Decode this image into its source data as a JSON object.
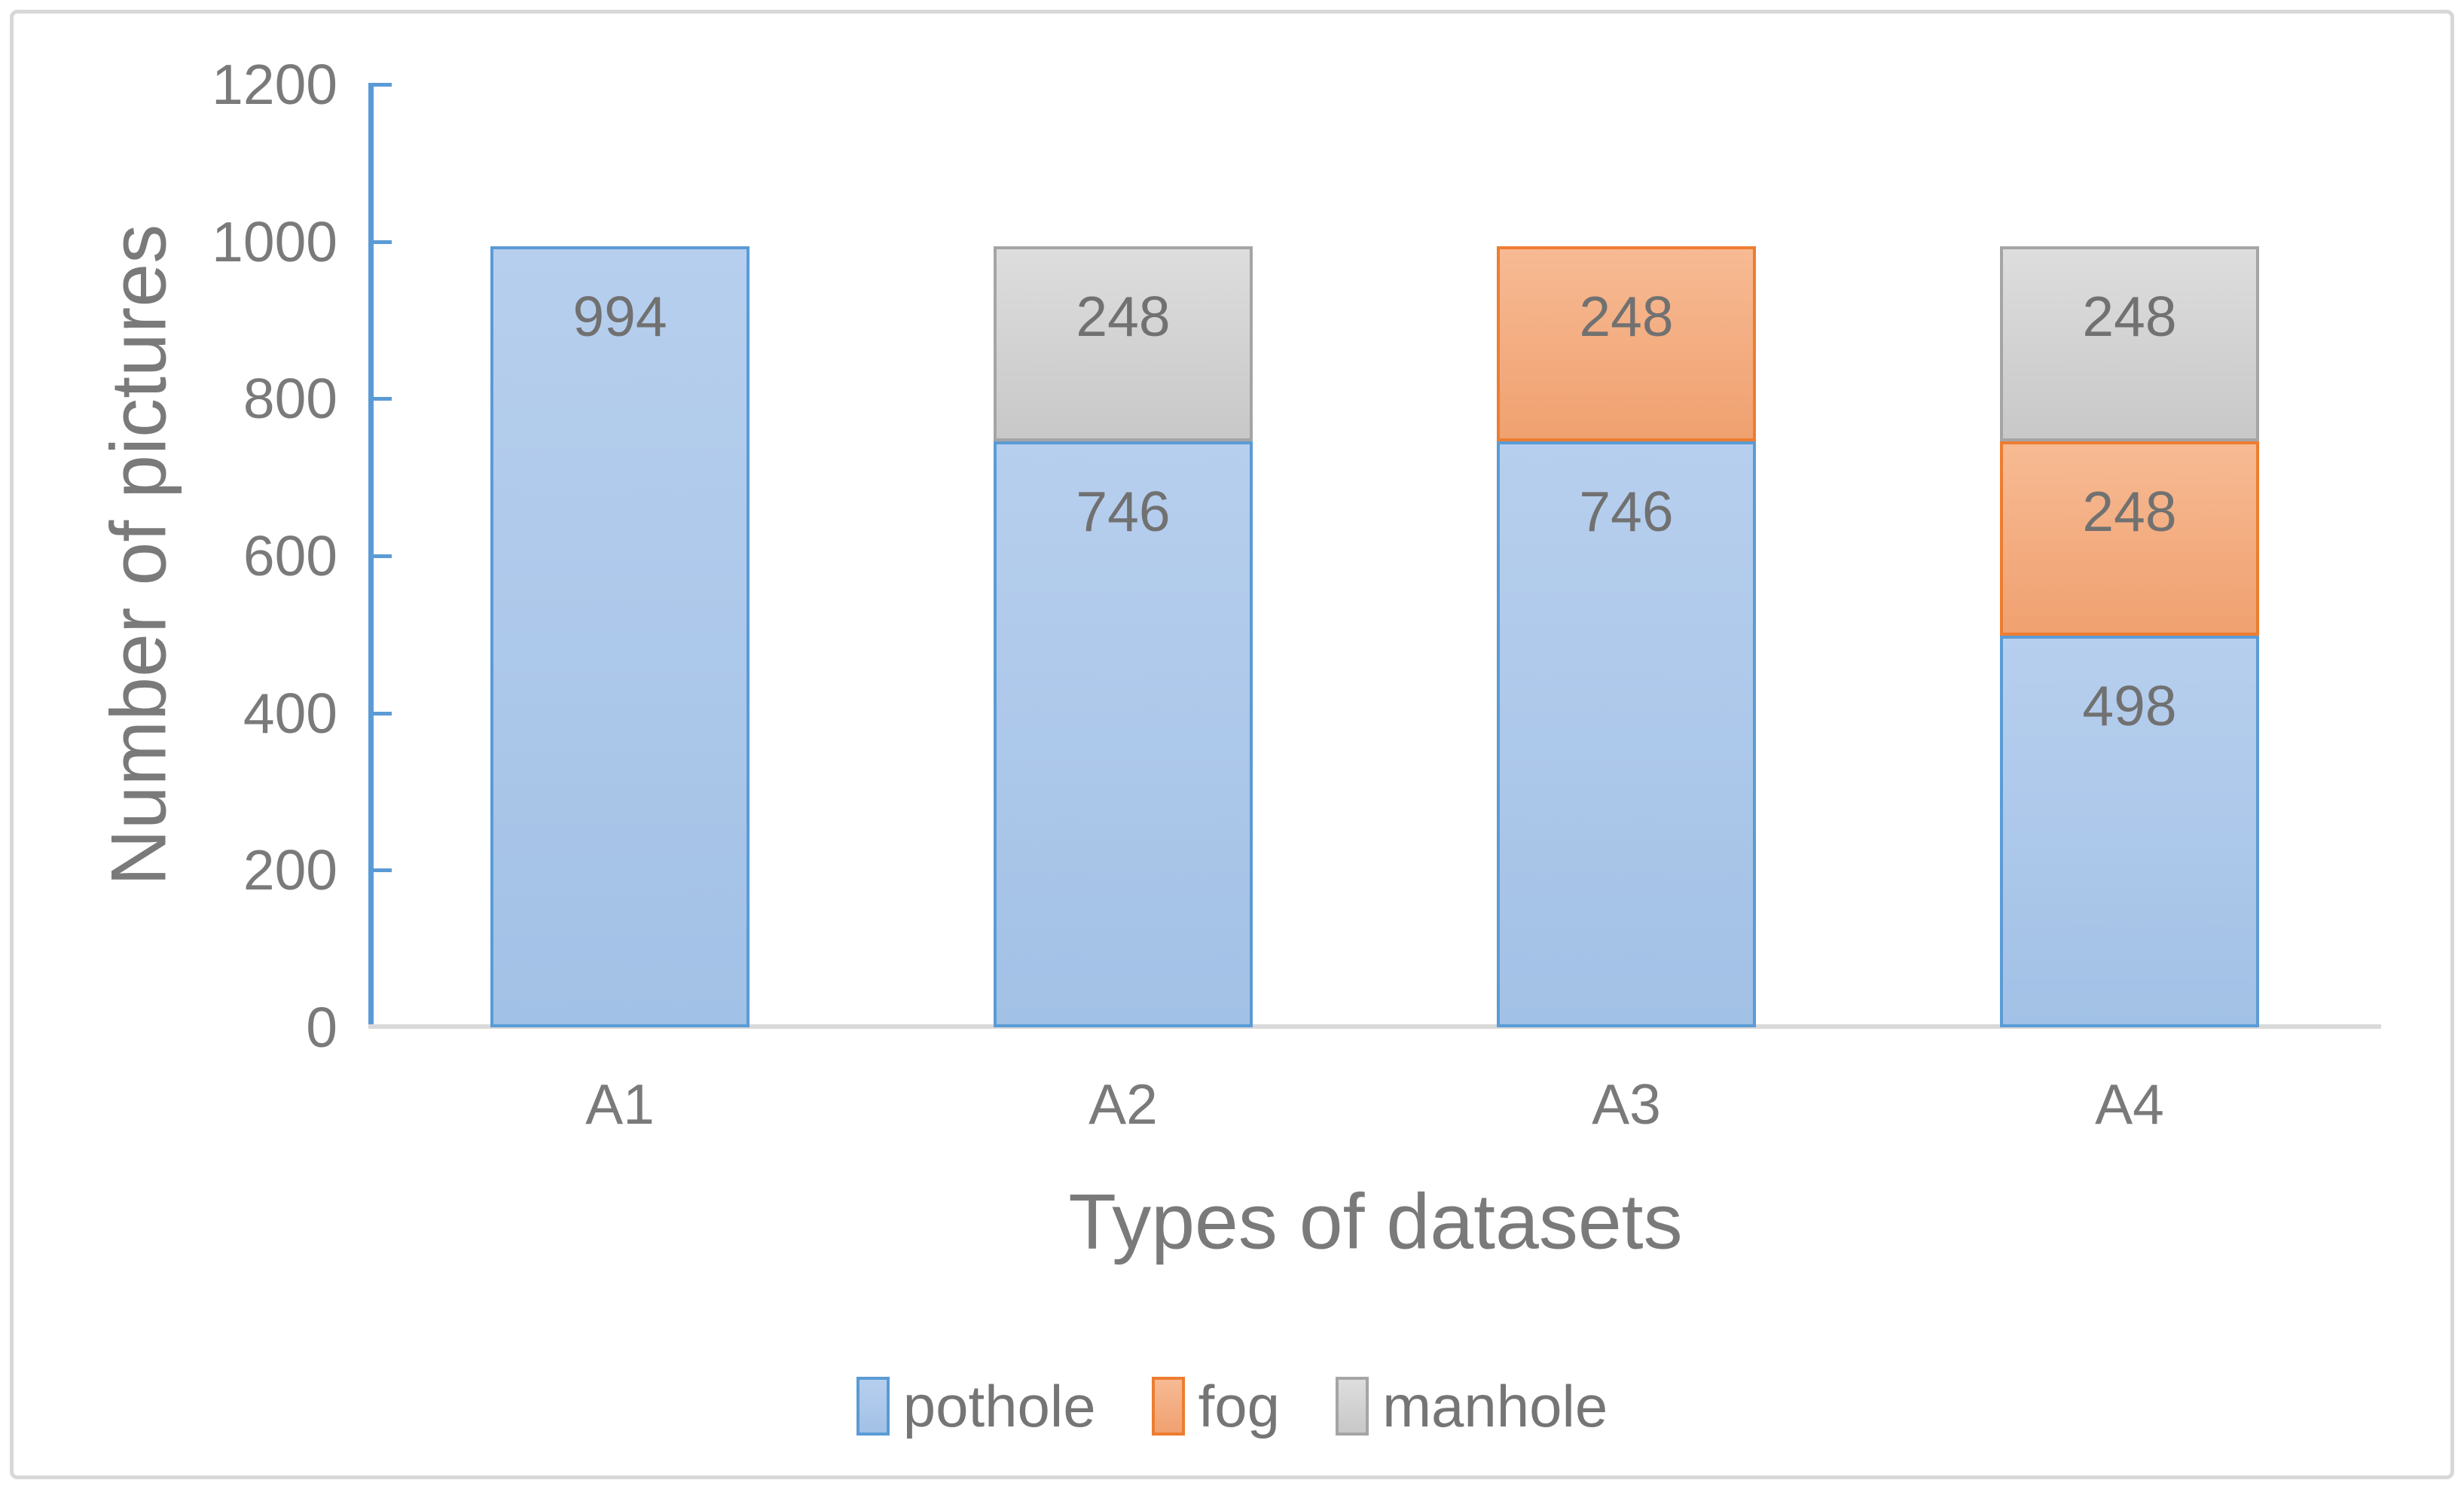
{
  "chart_data": {
    "type": "bar",
    "stacked": true,
    "title": "",
    "xlabel": "Types of datasets",
    "ylabel": "Number of pictures",
    "categories": [
      "A1",
      "A2",
      "A3",
      "A4"
    ],
    "series": [
      {
        "name": "pothole",
        "values": [
          994,
          746,
          746,
          498
        ],
        "border_color": "#5B9BD5",
        "fill_light": "#B7CFEE",
        "fill_dark": "#A2C1E6"
      },
      {
        "name": "fog",
        "values": [
          0,
          0,
          248,
          248
        ],
        "border_color": "#ED7D31",
        "fill_light": "#F7BA93",
        "fill_dark": "#F0A170"
      },
      {
        "name": "manhole",
        "values": [
          0,
          248,
          0,
          248
        ],
        "border_color": "#A5A5A5",
        "fill_light": "#DEDDDD",
        "fill_dark": "#C9C8C8"
      }
    ],
    "totals": [
      994,
      994,
      994,
      994
    ],
    "data_labels_shown": true,
    "ylim": [
      0,
      1200
    ],
    "yticks": [
      0,
      200,
      400,
      600,
      800,
      1000,
      1200
    ],
    "grid": false,
    "legend_position": "bottom",
    "legend_labels": [
      "pothole",
      "fog",
      "manhole"
    ],
    "axis_color": "#5B9BD5",
    "baseline_color": "#D9D9D9",
    "label_color": "#757575"
  }
}
